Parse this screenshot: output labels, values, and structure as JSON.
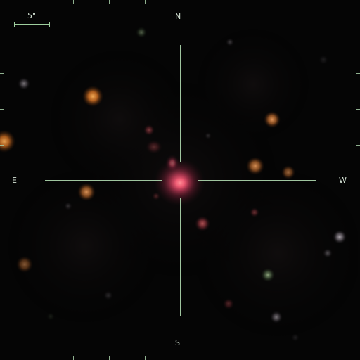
{
  "labels": {
    "scale": "5\"",
    "north": "N",
    "south": "S",
    "east": "E",
    "west": "W"
  }
}
